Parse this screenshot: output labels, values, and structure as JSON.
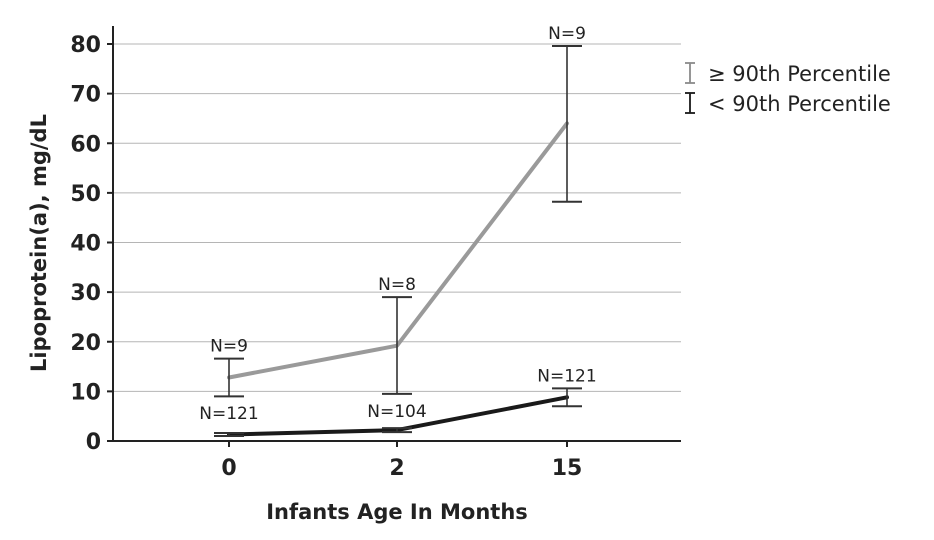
{
  "chart_data": {
    "type": "line",
    "xlabel": "Infants Age In Months",
    "ylabel": "Lipoprotein(a), mg/dL",
    "categories": [
      "0",
      "2",
      "15"
    ],
    "ylim": [
      0,
      80
    ],
    "yticks": [
      0,
      10,
      20,
      30,
      40,
      50,
      60,
      70,
      80
    ],
    "grid": "horizontal",
    "legend_position": "top-right",
    "series": [
      {
        "name": "≥ 90th Percentile",
        "color": "#9a9a9a",
        "values": [
          12.8,
          19.2,
          64
        ],
        "error_low": [
          9,
          9.5,
          48.2
        ],
        "error_high": [
          16.6,
          29,
          79.6
        ],
        "n_labels": [
          "N=9",
          "N=8",
          "N=9"
        ]
      },
      {
        "name": "< 90th Percentile",
        "color": "#1a1a1a",
        "values": [
          1.3,
          2.2,
          8.8
        ],
        "error_low": [
          1.0,
          1.8,
          7.0
        ],
        "error_high": [
          1.6,
          2.6,
          10.6
        ],
        "n_labels": [
          "N=121",
          "N=104",
          "N=121"
        ]
      }
    ]
  }
}
